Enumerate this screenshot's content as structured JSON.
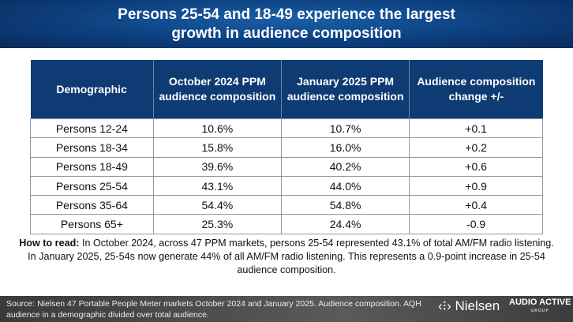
{
  "title_line1": "Persons 25-54 and 18-49 experience the largest",
  "title_line2": "growth in audience composition",
  "table": {
    "headers": [
      "Demographic",
      "October 2024 PPM audience composition",
      "January 2025 PPM audience composition",
      "Audience composition change +/-"
    ],
    "rows": [
      [
        "Persons 12-24",
        "10.6%",
        "10.7%",
        "+0.1"
      ],
      [
        "Persons 18-34",
        "15.8%",
        "16.0%",
        "+0.2"
      ],
      [
        "Persons 18-49",
        "39.6%",
        "40.2%",
        "+0.6"
      ],
      [
        "Persons 25-54",
        "43.1%",
        "44.0%",
        "+0.9"
      ],
      [
        "Persons 35-64",
        "54.4%",
        "54.8%",
        "+0.4"
      ],
      [
        "Persons 65+",
        "25.3%",
        "24.4%",
        "-0.9"
      ]
    ]
  },
  "how_to_read": {
    "label": "How to read:",
    "text": " In October 2024, across 47 PPM markets, persons 25-54 represented 43.1% of total AM/FM radio listening. In January 2025, 25-54s now generate 44% of all  AM/FM radio listening. This represents a 0.9-point increase in 25-54 audience composition."
  },
  "footer": {
    "source": "Source: Nielsen 47 Portable People Meter markets October 2024 and January 2025. Audience composition. AQH audience in a demographic divided over total audience.",
    "logo_nielsen": "Nielsen",
    "logo_aag_main": "AUDIO ACTIVE",
    "logo_aag_sub": "GROUP"
  }
}
